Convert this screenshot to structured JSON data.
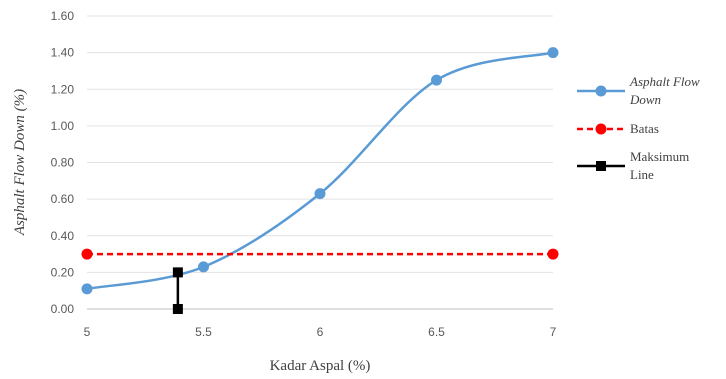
{
  "chart_data": {
    "type": "line",
    "xlabel": "Kadar Aspal (%)",
    "ylabel": "Asphalt Flow Down (%)",
    "xlim": [
      5,
      7
    ],
    "ylim": [
      0,
      1.6
    ],
    "x_ticks": [
      "5",
      "5.5",
      "6",
      "6.5",
      "7"
    ],
    "y_ticks": [
      "0.00",
      "0.20",
      "0.40",
      "0.60",
      "0.80",
      "1.00",
      "1.20",
      "1.40",
      "1.60"
    ],
    "grid": "horizontal",
    "legend_position": "right",
    "series": [
      {
        "name": "Asphalt Flow Down",
        "color": "#5b9bd5",
        "style": "solid-smooth",
        "marker": "circle",
        "x": [
          5,
          5.5,
          6,
          6.5,
          7
        ],
        "y": [
          0.11,
          0.23,
          0.63,
          1.25,
          1.4
        ]
      },
      {
        "name": "Batas",
        "color": "#ff0000",
        "style": "dashed",
        "marker": "circle",
        "x": [
          5,
          7
        ],
        "y": [
          0.3,
          0.3
        ]
      },
      {
        "name": "Maksimum Line",
        "color": "#000000",
        "style": "solid",
        "marker": "square",
        "x": [
          5.39,
          5.39
        ],
        "y": [
          0.0,
          0.2
        ]
      }
    ],
    "legend": {
      "entries": [
        {
          "lines": [
            "Asphalt Flow",
            "Down"
          ],
          "italic": true
        },
        {
          "lines": [
            "Batas"
          ],
          "italic": false
        },
        {
          "lines": [
            "Maksimum",
            "Line"
          ],
          "italic": false
        }
      ]
    }
  }
}
